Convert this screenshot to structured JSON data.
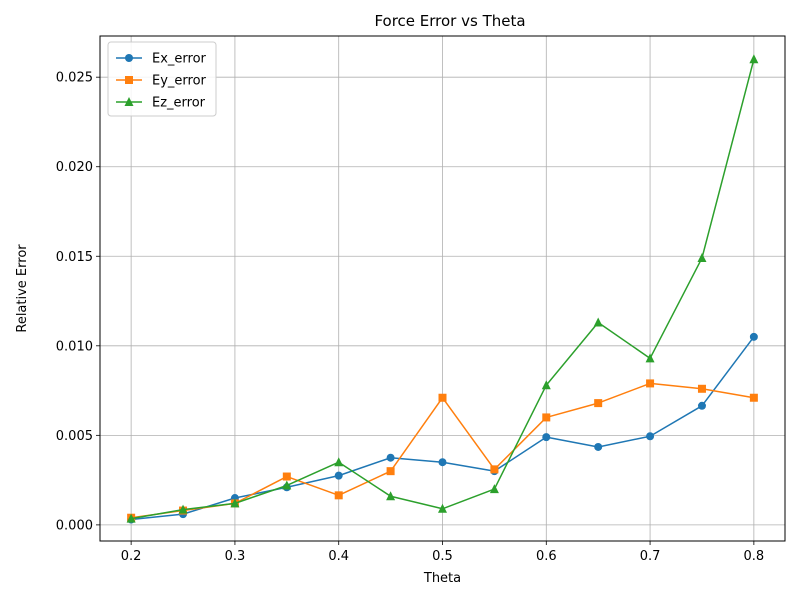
{
  "chart_data": {
    "type": "line",
    "title": "Force Error vs Theta",
    "xlabel": "Theta",
    "ylabel": "Relative Error",
    "xlim": [
      0.17,
      0.83
    ],
    "ylim": [
      -0.0009,
      0.0273
    ],
    "xticks": [
      0.2,
      0.3,
      0.4,
      0.5,
      0.6,
      0.7,
      0.8
    ],
    "xtick_labels": [
      "0.2",
      "0.3",
      "0.4",
      "0.5",
      "0.6",
      "0.7",
      "0.8"
    ],
    "yticks": [
      0.0,
      0.005,
      0.01,
      0.015,
      0.02,
      0.025
    ],
    "ytick_labels": [
      "0.000",
      "0.005",
      "0.010",
      "0.015",
      "0.020",
      "0.025"
    ],
    "grid": true,
    "legend_position": "upper-left",
    "x": [
      0.2,
      0.25,
      0.3,
      0.35,
      0.4,
      0.45,
      0.5,
      0.55,
      0.6,
      0.65,
      0.7,
      0.75,
      0.8
    ],
    "series": [
      {
        "name": "Ex_error",
        "color": "#1f77b4",
        "marker": "circle",
        "values": [
          0.0003,
          0.0006,
          0.0015,
          0.0021,
          0.00275,
          0.00375,
          0.0035,
          0.003,
          0.0049,
          0.00435,
          0.00495,
          0.00665,
          0.0105
        ]
      },
      {
        "name": "Ey_error",
        "color": "#ff7f0e",
        "marker": "square",
        "values": [
          0.0004,
          0.0008,
          0.0012,
          0.0027,
          0.00165,
          0.003,
          0.0071,
          0.0031,
          0.006,
          0.0068,
          0.0079,
          0.0076,
          0.0071
        ]
      },
      {
        "name": "Ez_error",
        "color": "#2ca02c",
        "marker": "triangle",
        "values": [
          0.00035,
          0.00085,
          0.0012,
          0.0022,
          0.0035,
          0.0016,
          0.0009,
          0.002,
          0.0078,
          0.0113,
          0.0093,
          0.0149,
          0.026
        ]
      }
    ]
  }
}
